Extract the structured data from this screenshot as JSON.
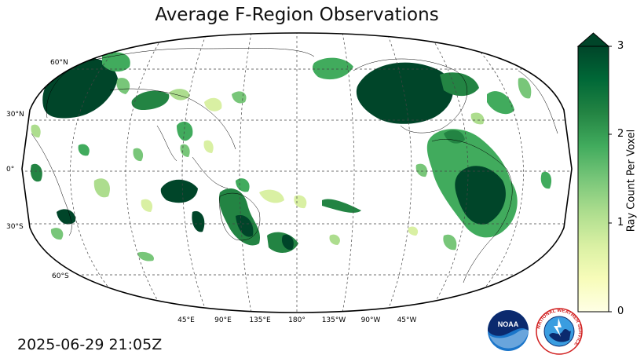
{
  "title": "Average F-Region Observations",
  "timestamp": "2025-06-29 21:05Z",
  "map": {
    "projection": "robinson",
    "central_longitude": 180,
    "lat_labels": [
      "60°N",
      "30°N",
      "0°",
      "30°S",
      "60°S"
    ],
    "lon_labels": [
      "45°E",
      "90°E",
      "135°E",
      "180°",
      "135°W",
      "90°W",
      "45°W"
    ],
    "gridlines": true
  },
  "colorbar": {
    "label": "Ray Count Per Voxel",
    "ticks": [
      "0",
      "1",
      "2",
      "3"
    ],
    "min": 0,
    "max": 3,
    "extend": "max",
    "colormap": "YlGn",
    "colors": [
      "#ffffe5",
      "#f7fcb9",
      "#d9f0a3",
      "#addd8e",
      "#78c679",
      "#41ab5d",
      "#238443",
      "#006837",
      "#004529"
    ]
  },
  "logos": {
    "noaa": "NOAA",
    "nws": "NATIONAL WEATHER SERVICE"
  },
  "icons": {
    "noaa": "noaa-logo-icon",
    "nws": "nws-logo-icon"
  }
}
